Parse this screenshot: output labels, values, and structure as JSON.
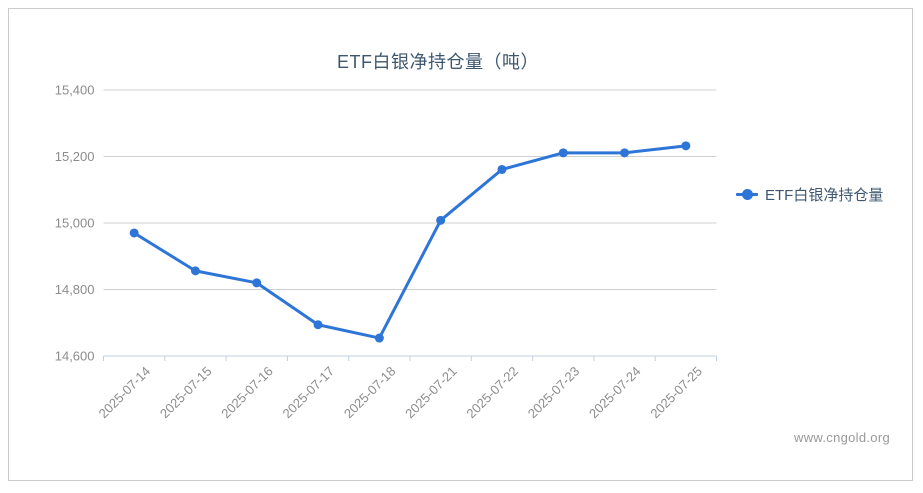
{
  "title": "ETF白银净持仓量（吨）",
  "legend": {
    "label": "ETF白银净持仓量"
  },
  "watermark": "www.cngold.org",
  "colors": {
    "series": "#2e75d8",
    "title": "#3e576f",
    "axis_label": "#8c8c8c",
    "grid_line": "#d0d0d0",
    "axis_line": "#c0d0e0",
    "watermark": "#999999",
    "border": "#cccccc",
    "background": "#ffffff"
  },
  "chart_data": {
    "type": "line",
    "title": "ETF白银净持仓量（吨）",
    "categories": [
      "2025-07-14",
      "2025-07-15",
      "2025-07-16",
      "2025-07-17",
      "2025-07-18",
      "2025-07-21",
      "2025-07-22",
      "2025-07-23",
      "2025-07-24",
      "2025-07-25"
    ],
    "series": [
      {
        "name": "ETF白银净持仓量",
        "values": [
          14970,
          14856,
          14820,
          14694,
          14654,
          15008,
          15161,
          15211,
          15211,
          15232
        ]
      }
    ],
    "xlabel": "",
    "ylabel": "",
    "ylim": [
      14600,
      15400
    ],
    "ytick_interval": 200,
    "ytick_labels": [
      "14,600",
      "14,800",
      "15,000",
      "15,200",
      "15,400"
    ],
    "grid": "horizontal-only",
    "legend_position": "right-middle",
    "x_label_rotation": -45,
    "marker": "circle"
  }
}
